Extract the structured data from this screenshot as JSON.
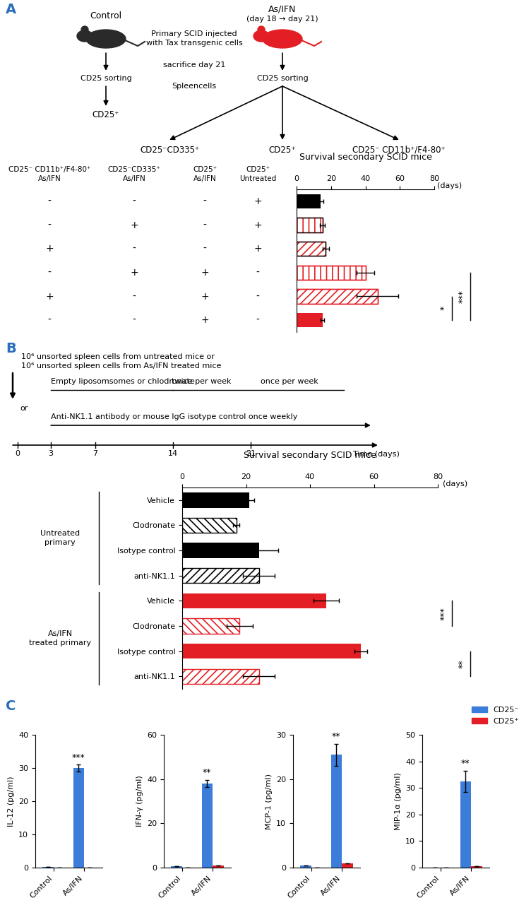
{
  "panel_labels": [
    "A",
    "B",
    "C"
  ],
  "schematic_A": {
    "control": "Control",
    "treated": "As/IFN",
    "treatment_days": "(day 18 → day 21)",
    "injection": [
      "Primary SCID injected",
      "with Tax transgenic cells"
    ],
    "sacrifice": "sacrifice day 21",
    "spleen": "Spleencells",
    "sorting": "CD25 sorting",
    "control_fraction": "CD25⁺",
    "treated_fractions": [
      "CD25⁻CD335⁺",
      "CD25⁺",
      "CD25⁻ CD11b⁺/F4-80⁺"
    ]
  },
  "table_A": {
    "columns": [
      [
        "CD25⁻ CD11b⁺/F4-80⁺",
        "As/IFN"
      ],
      [
        "CD25⁻CD335⁺",
        "As/IFN"
      ],
      [
        "CD25⁺",
        "As/IFN"
      ],
      [
        "CD25⁺",
        "Untreated"
      ]
    ],
    "rows": [
      [
        "-",
        "-",
        "-",
        "+"
      ],
      [
        "-",
        "+",
        "-",
        "+"
      ],
      [
        "+",
        "-",
        "-",
        "+"
      ],
      [
        "-",
        "+",
        "+",
        "-"
      ],
      [
        "+",
        "-",
        "+",
        "-"
      ],
      [
        "-",
        "-",
        "+",
        "-"
      ]
    ]
  },
  "schematic_B": {
    "cells": [
      "10⁶ unsorted spleen cells from untreated mice or",
      "10⁶ unsorted spleen cells from As/IFN treated mice"
    ],
    "liposomes": "Empty liposomsomes or chlodronate",
    "twice": "twice per week",
    "once": "once per week",
    "or": "or",
    "antibody": "Anti-NK1.1 antibody or mouse IgG isotype control once weekly",
    "time_ticks": [
      0,
      3,
      7,
      14,
      21
    ],
    "time_label": "Time (days)"
  },
  "chart_data": [
    {
      "type": "bar",
      "orientation": "horizontal",
      "title": "Survival secondary SCID mice",
      "xlabel": "(days)",
      "categories": [
        null,
        null,
        null,
        null,
        null,
        null
      ],
      "values": [
        14,
        15,
        17,
        40,
        47,
        15
      ],
      "errors": [
        1.5,
        1.5,
        2,
        5,
        12,
        1
      ],
      "colors": [
        "#000000",
        "#e31e24",
        "#e31e24",
        "#e31e24",
        "#e31e24",
        "#e31e24"
      ],
      "xlim": [
        0,
        80
      ],
      "xticks": [
        0,
        20,
        40,
        60,
        80
      ],
      "significance": [
        {
          "from": 4,
          "to": 5,
          "label": "*"
        },
        {
          "from": 3,
          "to": 5,
          "label": "***"
        }
      ]
    },
    {
      "type": "bar",
      "orientation": "horizontal",
      "title": "Survival secondary SCID mice",
      "xlabel": "(days)",
      "categories": [
        "Vehicle",
        "Clodronate",
        "Isotype control",
        "anti-NK1.1",
        "Vehicle",
        "Clodronate",
        "Isotype control",
        "anti-NK1.1"
      ],
      "groups": [
        {
          "name": [
            "Untreated",
            "primary"
          ],
          "from": 0,
          "to": 3
        },
        {
          "name": [
            "As/IFN",
            "treated primary"
          ],
          "from": 4,
          "to": 7
        }
      ],
      "values": [
        21,
        17,
        24,
        24,
        45,
        18,
        56,
        24
      ],
      "errors": [
        1.5,
        1,
        6,
        5,
        4,
        4,
        2,
        5
      ],
      "colors": [
        "#000000",
        "#000000",
        "#000000",
        "#000000",
        "#e31e24",
        "#e31e24",
        "#e31e24",
        "#e31e24"
      ],
      "xlim": [
        0,
        80
      ],
      "xticks": [
        0,
        20,
        40,
        60,
        80
      ],
      "significance": [
        {
          "from": 4,
          "to": 5,
          "label": "***"
        },
        {
          "from": 6,
          "to": 7,
          "label": "**"
        }
      ]
    },
    {
      "type": "bar",
      "ylabel": "IL-12 (pg/ml)",
      "categories": [
        "Control",
        "As/IFN"
      ],
      "series": [
        {
          "name": "CD25⁻",
          "color": "#3b7dd8",
          "values": [
            0.3,
            30
          ],
          "errors": [
            0,
            1
          ]
        },
        {
          "name": "CD25⁺",
          "color": "#e31e24",
          "values": [
            0,
            0
          ],
          "errors": [
            0,
            0
          ]
        }
      ],
      "ylim": [
        0,
        40
      ],
      "yticks": [
        0,
        10,
        20,
        30,
        40
      ],
      "significance": [
        {
          "category": 1,
          "series": 0,
          "label": "***"
        }
      ]
    },
    {
      "type": "bar",
      "ylabel": "IFN-γ (pg/ml)",
      "categories": [
        "Control",
        "As/IFN"
      ],
      "series": [
        {
          "name": "CD25⁻",
          "color": "#3b7dd8",
          "values": [
            0.5,
            38
          ],
          "errors": [
            0,
            1.5
          ]
        },
        {
          "name": "CD25⁺",
          "color": "#e31e24",
          "values": [
            0,
            0.8
          ],
          "errors": [
            0,
            0
          ]
        }
      ],
      "ylim": [
        0,
        60
      ],
      "yticks": [
        0,
        20,
        40,
        60
      ],
      "significance": [
        {
          "category": 1,
          "series": 0,
          "label": "**"
        }
      ]
    },
    {
      "type": "bar",
      "ylabel": "MCP-1 (pg/ml)",
      "categories": [
        "Control",
        "As/IFN"
      ],
      "series": [
        {
          "name": "CD25⁻",
          "color": "#3b7dd8",
          "values": [
            0.5,
            25.5
          ],
          "errors": [
            0,
            2.5
          ]
        },
        {
          "name": "CD25⁺",
          "color": "#e31e24",
          "values": [
            0,
            1
          ],
          "errors": [
            0,
            0
          ]
        }
      ],
      "ylim": [
        0,
        30
      ],
      "yticks": [
        0,
        10,
        20,
        30
      ],
      "significance": [
        {
          "category": 1,
          "series": 0,
          "label": "**"
        }
      ]
    },
    {
      "type": "bar",
      "ylabel": "MIP-1α (pg/ml)",
      "categories": [
        "Control",
        "As/IFN"
      ],
      "series": [
        {
          "name": "CD25⁻",
          "color": "#3b7dd8",
          "values": [
            0,
            32.5
          ],
          "errors": [
            0,
            4
          ]
        },
        {
          "name": "CD25⁺",
          "color": "#e31e24",
          "values": [
            0,
            0.5
          ],
          "errors": [
            0,
            0
          ]
        }
      ],
      "ylim": [
        0,
        50
      ],
      "yticks": [
        0,
        10,
        20,
        30,
        40,
        50
      ],
      "legend": "upper right",
      "significance": [
        {
          "category": 1,
          "series": 0,
          "label": "**"
        }
      ]
    }
  ]
}
